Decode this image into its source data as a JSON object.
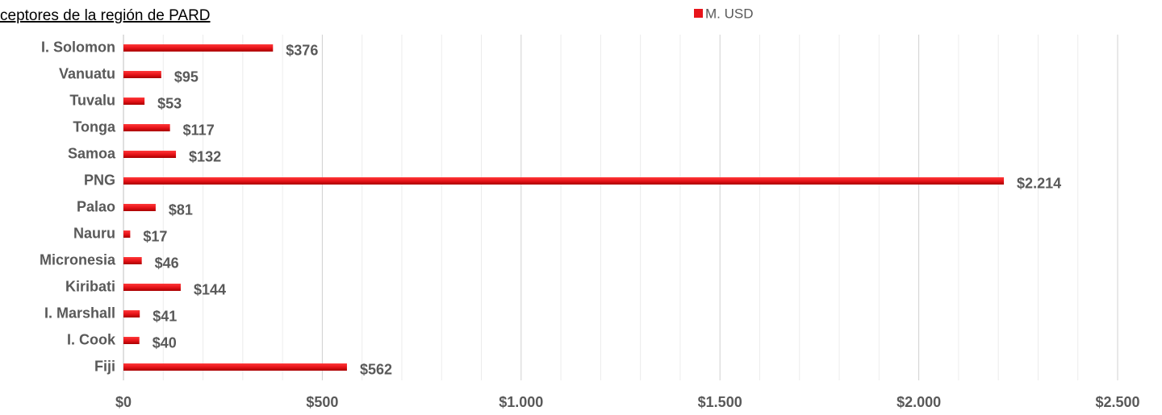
{
  "chart_data": {
    "type": "hbar",
    "title": "ceptores de la región de PARD",
    "categories": [
      "I. Solomon",
      "Vanuatu",
      "Tuvalu",
      "Tonga",
      "Samoa",
      "PNG",
      "Palao",
      "Nauru",
      "Micronesia",
      "Kiribati",
      "I. Marshall",
      "I. Cook",
      "Fiji"
    ],
    "series": [
      {
        "name": "M. USD",
        "color": "#e8141a",
        "values": [
          376,
          95,
          53,
          117,
          132,
          2214,
          81,
          17,
          46,
          144,
          41,
          40,
          562
        ],
        "value_labels": [
          "$376",
          "$95",
          "$53",
          "$117",
          "$132",
          "$2.214",
          "$81",
          "$17",
          "$46",
          "$144",
          "$41",
          "$40",
          "$562"
        ]
      }
    ],
    "xlim": [
      0,
      2500
    ],
    "xticks": [
      {
        "value": 0,
        "label": "$0"
      },
      {
        "value": 500,
        "label": "$500"
      },
      {
        "value": 1000,
        "label": "$1.000"
      },
      {
        "value": 1500,
        "label": "$1.500"
      },
      {
        "value": 2000,
        "label": "$2.000"
      },
      {
        "value": 2500,
        "label": "$2.500"
      }
    ],
    "grid": true,
    "legend": "top"
  }
}
